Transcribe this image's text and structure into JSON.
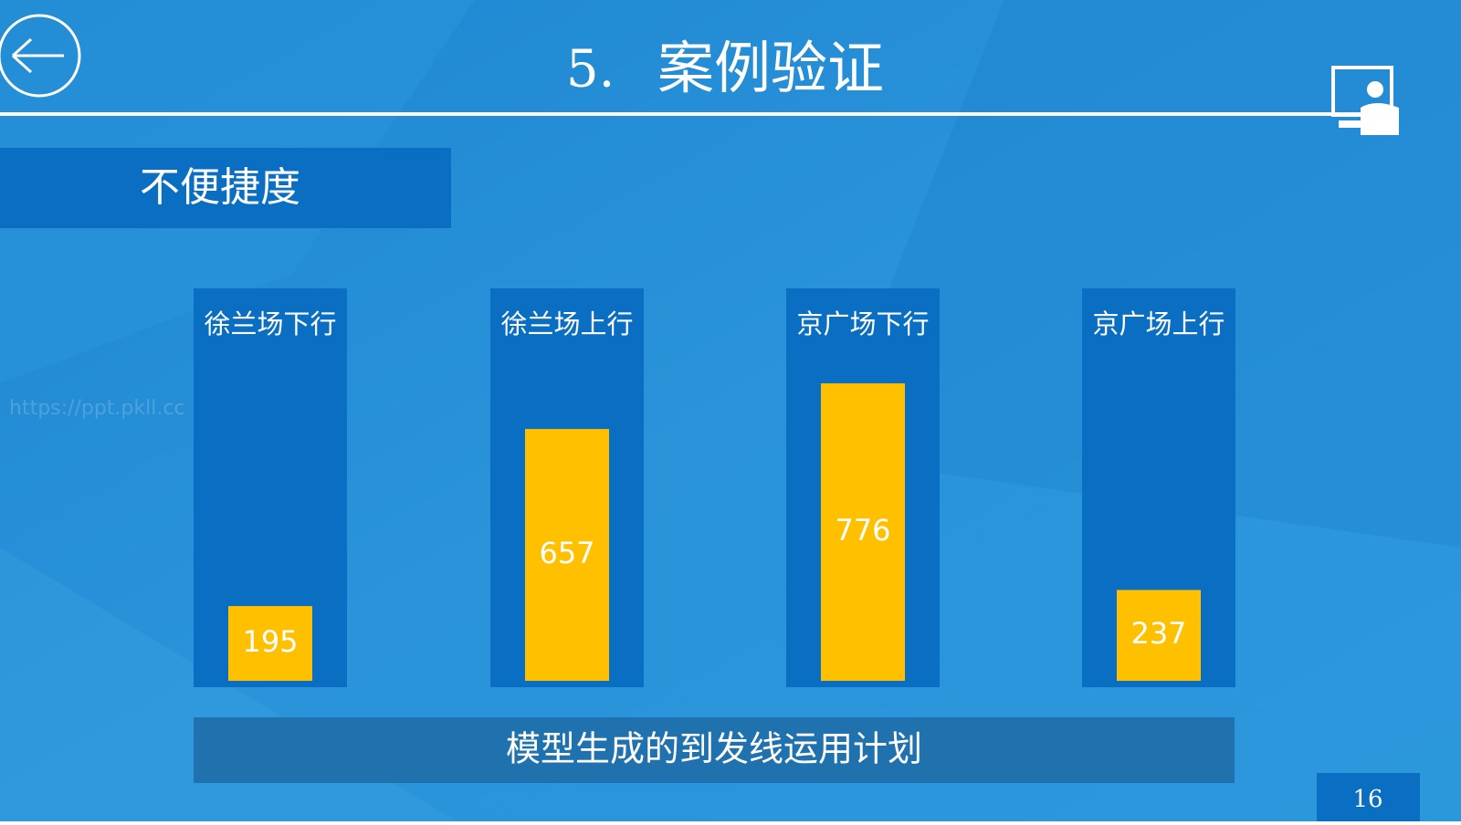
{
  "header": {
    "number": "5.",
    "title": "案例验证"
  },
  "section": "不便捷度",
  "watermark": "https://ppt.pkll.cc",
  "chart_data": {
    "type": "bar",
    "categories": [
      "徐兰场下行",
      "徐兰场上行",
      "京广场下行",
      "京广场上行"
    ],
    "values": [
      195,
      657,
      776,
      237
    ],
    "color": "#ffc000",
    "caption": "模型生成的到发线运用计划"
  },
  "page_number": "16"
}
